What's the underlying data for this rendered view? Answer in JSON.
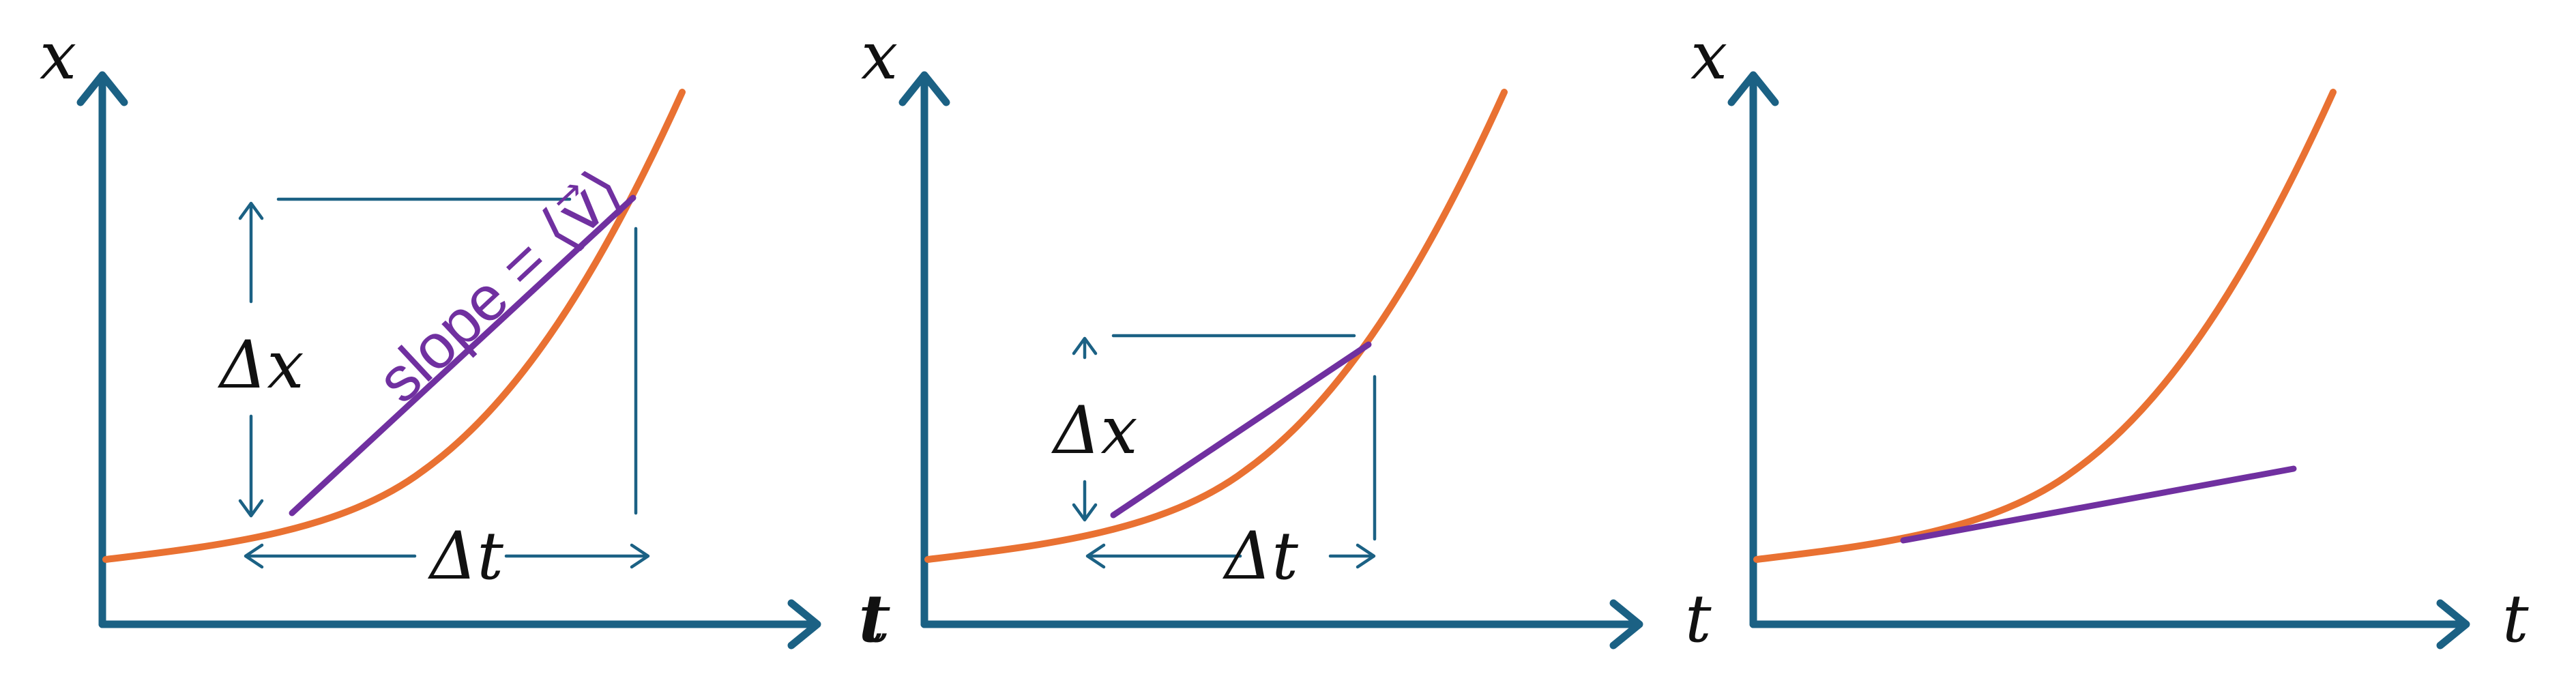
{
  "axis_labels": {
    "vertical": "x",
    "horizontal": "t"
  },
  "panels": [
    {
      "delta_x_label": "Δx",
      "delta_t_label": "Δt",
      "slope_label": "slope = ⟨v⃗⟩"
    },
    {
      "delta_x_label": "Δx",
      "delta_t_label": "Δt"
    },
    {}
  ],
  "colors": {
    "axis": "#1b6184",
    "curve": "#e97132",
    "slope_line": "#7030a0",
    "text": "#111111"
  }
}
